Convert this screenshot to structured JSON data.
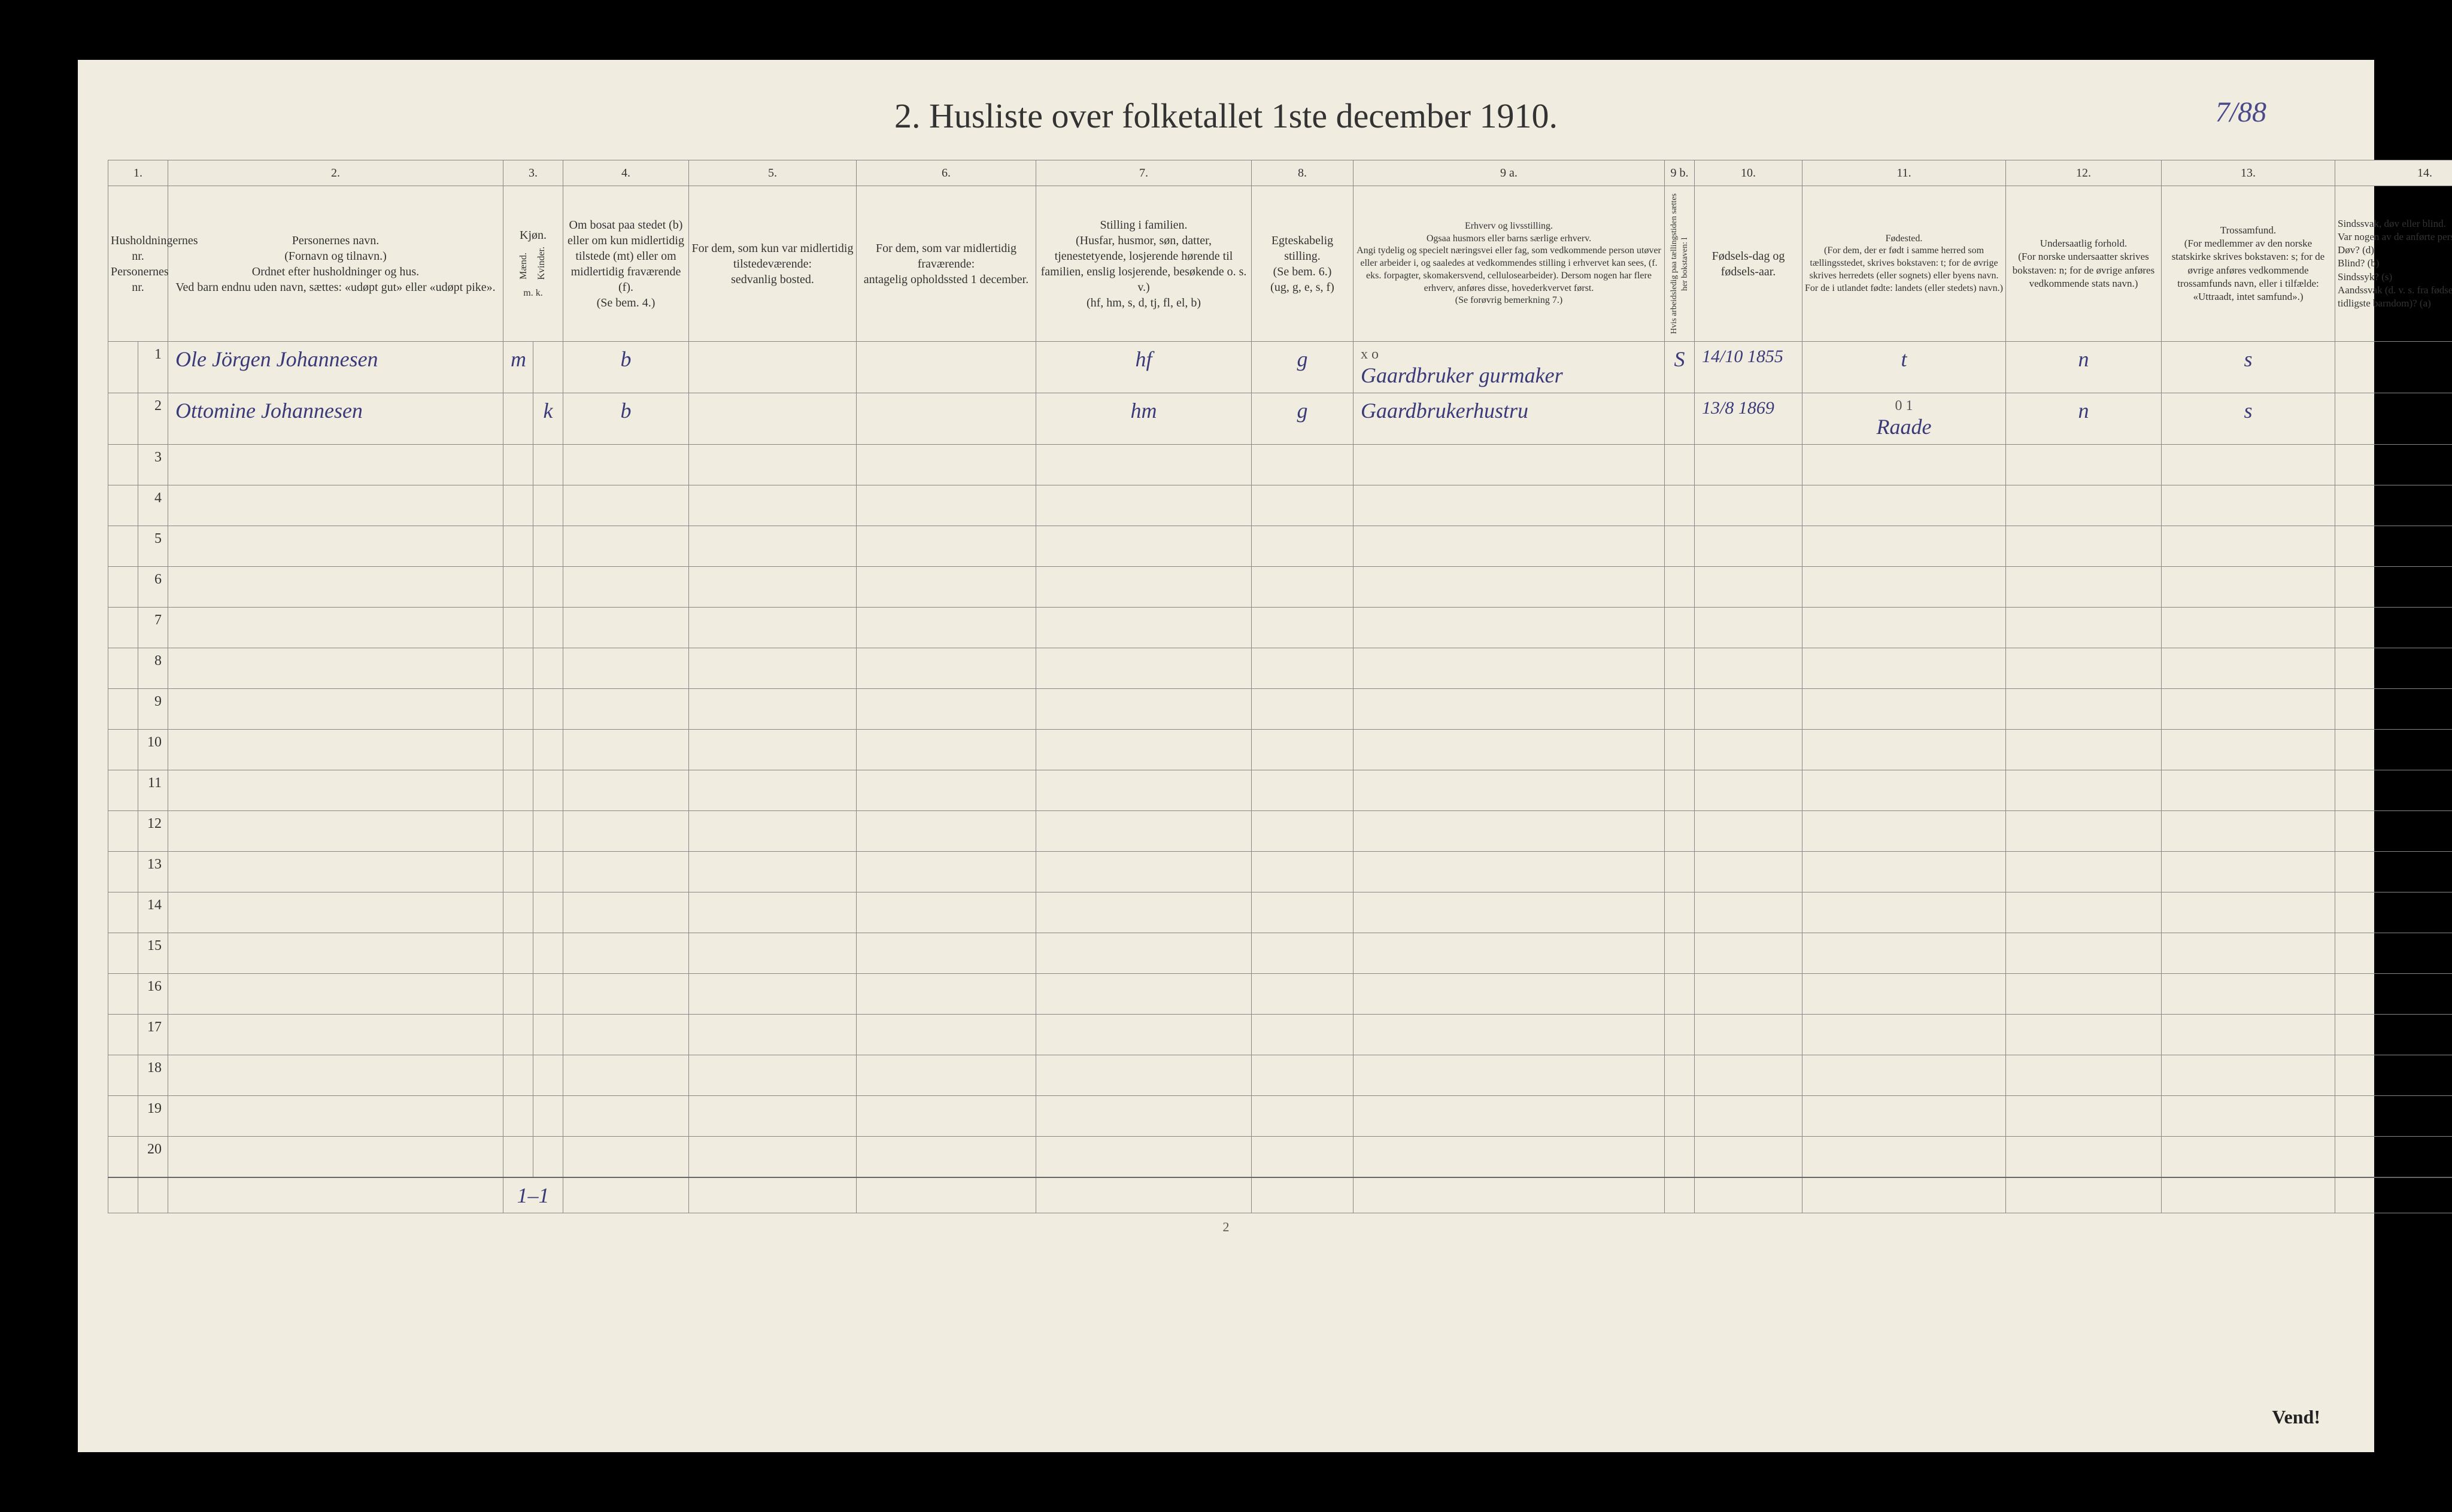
{
  "page_number_top": "7/88",
  "title": "2.  Husliste over folketallet 1ste december 1910.",
  "columns": {
    "numbers": [
      "1.",
      "2.",
      "3.",
      "4.",
      "5.",
      "6.",
      "7.",
      "8.",
      "9 a.",
      "9 b.",
      "10.",
      "11.",
      "12.",
      "13.",
      "14."
    ],
    "col1": "Husholdningernes nr.\nPersonernes nr.",
    "col2": "Personernes navn.\n(Fornavn og tilnavn.)\nOrdnet efter husholdninger og hus.\nVed barn endnu uden navn, sættes: «udøpt gut» eller «udøpt pike».",
    "col3_header": "Kjøn.",
    "col3a": "Mænd.",
    "col3b": "Kvinder.",
    "col3_sub": "m.  k.",
    "col4": "Om bosat paa stedet (b) eller om kun midlertidig tilstede (mt) eller om midlertidig fraværende (f).\n(Se bem. 4.)",
    "col5": "For dem, som kun var midlertidig tilstedeværende:\nsedvanlig bosted.",
    "col6": "For dem, som var midlertidig fraværende:\nantagelig opholdssted 1 december.",
    "col7": "Stilling i familien.\n(Husfar, husmor, søn, datter, tjenestetyende, losjerende hørende til familien, enslig losjerende, besøkende o. s. v.)\n(hf, hm, s, d, tj, fl, el, b)",
    "col8": "Egteskabelig stilling.\n(Se bem. 6.)\n(ug, g, e, s, f)",
    "col9a": "Erhverv og livsstilling.\nOgsaa husmors eller barns særlige erhverv.\nAngi tydelig og specielt næringsvei eller fag, som vedkommende person utøver eller arbeider i, og saaledes at vedkommendes stilling i erhvervet kan sees, (f. eks. forpagter, skomakersvend, cellulosearbeider). Dersom nogen har flere erhverv, anføres disse, hovederkvervet først.\n(Se forøvrig bemerkning 7.)",
    "col9b": "Hvis arbeidsledig paa tællingstiden sættes her bokstaven: l",
    "col10": "Fødsels-dag og fødsels-aar.",
    "col11": "Fødested.\n(For dem, der er født i samme herred som tællingsstedet, skrives bokstaven: t; for de øvrige skrives herredets (eller sognets) eller byens navn.\nFor de i utlandet fødte: landets (eller stedets) navn.)",
    "col12": "Undersaatlig forhold.\n(For norske undersaatter skrives bokstaven: n; for de øvrige anføres vedkommende stats navn.)",
    "col13": "Trossamfund.\n(For medlemmer av den norske statskirke skrives bokstaven: s; for de øvrige anføres vedkommende trossamfunds navn, eller i tilfælde: «Uttraadt, intet samfund».)",
    "col14": "Sindssvak, døv eller blind.\nVar nogen av de anførte personer:\nDøv?        (d)\nBlind?       (b)\nSindssyk? (s)\nAandssvak (d. v. s. fra fødselen eller den tidligste barndom)? (a)"
  },
  "rows": [
    {
      "num": "1",
      "name": "Ole Jörgen Johannesen",
      "sex_m": "m",
      "sex_k": "",
      "residence": "b",
      "col5": "",
      "col6": "",
      "family_pos": "hf",
      "marital": "g",
      "occupation": "Gaardbruker gurmaker",
      "occ_annotation": "x o",
      "col9b": "S",
      "birth": "14/10 1855",
      "birthplace": "t",
      "nationality": "n",
      "faith": "s",
      "col14": ""
    },
    {
      "num": "2",
      "name": "Ottomine Johannesen",
      "sex_m": "",
      "sex_k": "k",
      "residence": "b",
      "col5": "",
      "col6": "",
      "family_pos": "hm",
      "marital": "g",
      "occupation": "Gaardbrukerhustru",
      "occ_annotation": "",
      "col9b": "",
      "birth": "13/8 1869",
      "birthplace": "Raade",
      "birthplace_annotation": "0 1",
      "nationality": "n",
      "faith": "s",
      "col14": ""
    }
  ],
  "empty_row_nums": [
    "3",
    "4",
    "5",
    "6",
    "7",
    "8",
    "9",
    "10",
    "11",
    "12",
    "13",
    "14",
    "15",
    "16",
    "17",
    "18",
    "19",
    "20"
  ],
  "footer_tally": "1–1",
  "page_num_bottom": "2",
  "vend": "Vend!",
  "colors": {
    "page_bg": "#f0ede0",
    "border": "#888888",
    "text": "#333333",
    "handwriting": "#3a3a7a",
    "frame": "#000000"
  }
}
